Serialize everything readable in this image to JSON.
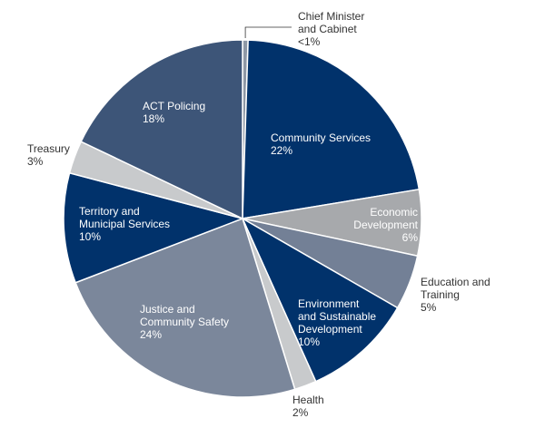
{
  "chart_data": {
    "type": "pie",
    "title": "",
    "start_angle_deg": 0,
    "direction": "clockwise",
    "slices": [
      {
        "name": [
          "Chief Minister",
          "and Cabinet"
        ],
        "display": "<1%",
        "value": 0.5,
        "color": "#8e98a6"
      },
      {
        "name": [
          "Community Services"
        ],
        "display": "22%",
        "value": 22,
        "color": "#01326b"
      },
      {
        "name": [
          "Economic",
          "Development"
        ],
        "display": "6%",
        "value": 6,
        "color": "#a7a9ac"
      },
      {
        "name": [
          "Education and",
          "Training"
        ],
        "display": "5%",
        "value": 5,
        "color": "#738096"
      },
      {
        "name": [
          "Environment",
          "and Sustainable",
          "Development"
        ],
        "display": "10%",
        "value": 10,
        "color": "#01326b"
      },
      {
        "name": [
          "Health"
        ],
        "display": "2%",
        "value": 2,
        "color": "#c8cacc"
      },
      {
        "name": [
          "Justice and",
          "Community Safety"
        ],
        "display": "24%",
        "value": 24,
        "color": "#7b879b"
      },
      {
        "name": [
          "Territory and",
          "Municipal Services"
        ],
        "display": "10%",
        "value": 10,
        "color": "#01326b"
      },
      {
        "name": [
          "Treasury"
        ],
        "display": "3%",
        "value": 3,
        "color": "#c8cacc"
      },
      {
        "name": [
          "ACT Policing"
        ],
        "display": "18%",
        "value": 18,
        "color": "#3d5578"
      }
    ]
  }
}
